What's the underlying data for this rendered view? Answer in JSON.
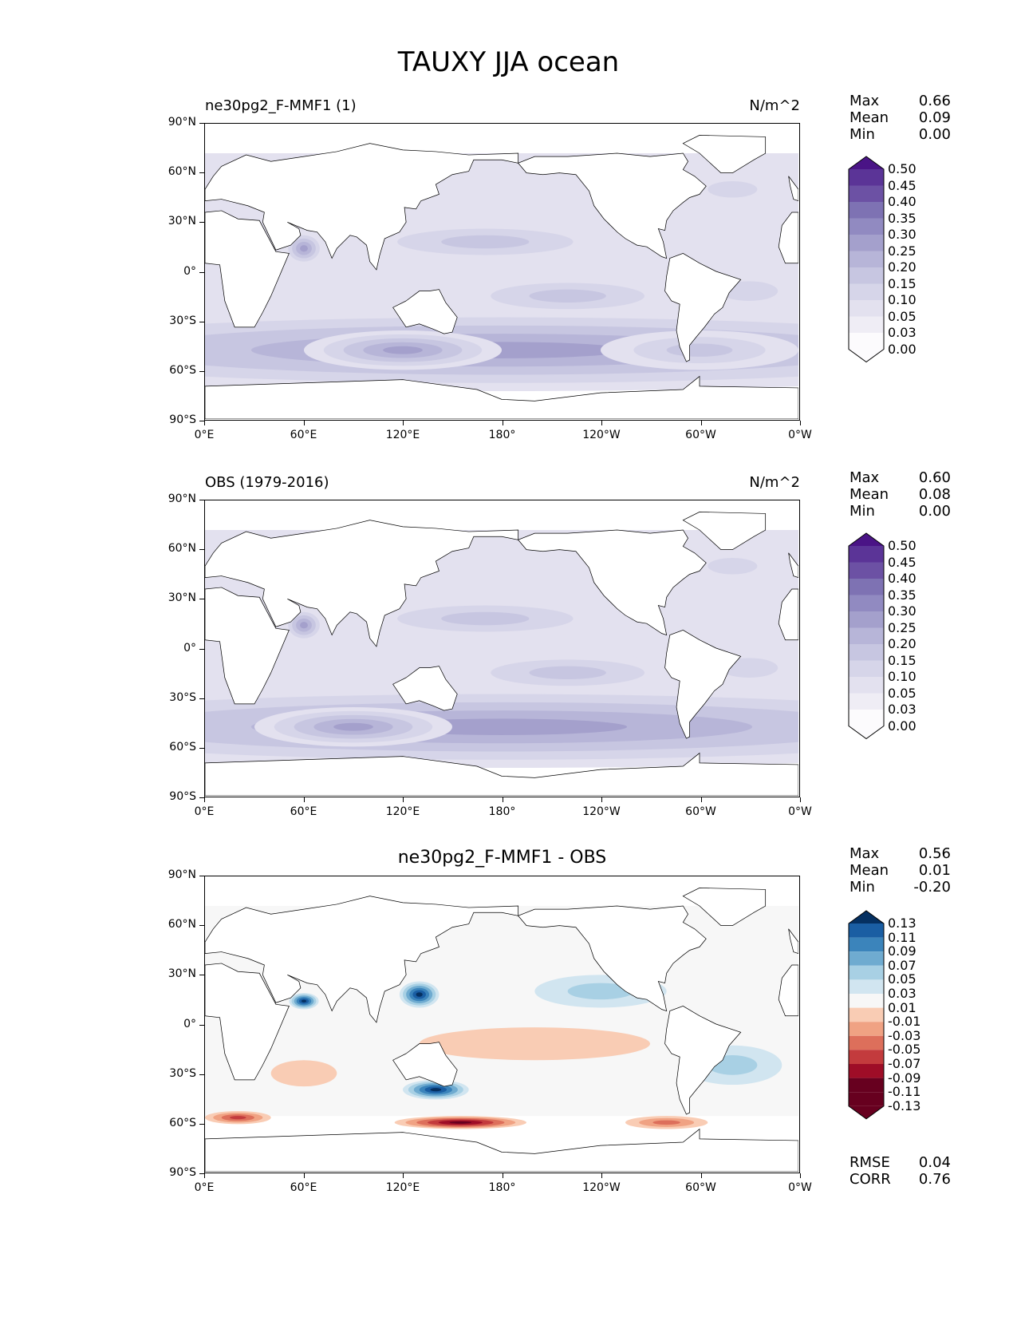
{
  "figure_title": "TAUXY JJA ocean",
  "lat_ticks": [
    "90°N",
    "60°N",
    "30°N",
    "0°",
    "30°S",
    "60°S",
    "90°S"
  ],
  "lon_ticks": [
    "0°E",
    "60°E",
    "120°E",
    "180°",
    "120°W",
    "60°W",
    "0°W"
  ],
  "colors": {
    "purples": [
      "#fcfbfd",
      "#efedf5",
      "#e3e1ef",
      "#d6d5e9",
      "#c7c6e1",
      "#b7b5d8",
      "#a4a0cc",
      "#918ac1",
      "#7e72b3",
      "#6c51a4",
      "#5b3497",
      "#4a1486"
    ],
    "rdbu": [
      "#67001f",
      "#9e0d27",
      "#c33b3d",
      "#dd6f5b",
      "#f0a283",
      "#f9ccb4",
      "#f7f7f7",
      "#d1e5f0",
      "#a8d0e4",
      "#6fabd0",
      "#3b84bb",
      "#1a5ea3",
      "#053061"
    ]
  },
  "chart_data": [
    {
      "type": "heatmap",
      "panel": "model",
      "left_title": "ne30pg2_F-MMF1 (1)",
      "units": "N/m^2",
      "stats": [
        {
          "label": "Max",
          "value": "0.66"
        },
        {
          "label": "Mean",
          "value": "0.09"
        },
        {
          "label": "Min",
          "value": "0.00"
        }
      ],
      "colorbar_levels": [
        "0.50",
        "0.45",
        "0.40",
        "0.35",
        "0.30",
        "0.25",
        "0.20",
        "0.15",
        "0.10",
        "0.05",
        "0.03",
        "0.00"
      ],
      "xlim": [
        0,
        360
      ],
      "ylim": [
        -90,
        90
      ]
    },
    {
      "type": "heatmap",
      "panel": "obs",
      "left_title": "OBS (1979-2016)",
      "units": "N/m^2",
      "stats": [
        {
          "label": "Max",
          "value": "0.60"
        },
        {
          "label": "Mean",
          "value": "0.08"
        },
        {
          "label": "Min",
          "value": "0.00"
        }
      ],
      "colorbar_levels": [
        "0.50",
        "0.45",
        "0.40",
        "0.35",
        "0.30",
        "0.25",
        "0.20",
        "0.15",
        "0.10",
        "0.05",
        "0.03",
        "0.00"
      ],
      "xlim": [
        0,
        360
      ],
      "ylim": [
        -90,
        90
      ]
    },
    {
      "type": "heatmap",
      "panel": "diff",
      "center_title": "ne30pg2_F-MMF1 - OBS",
      "stats": [
        {
          "label": "Max",
          "value": "0.56"
        },
        {
          "label": "Mean",
          "value": "0.01"
        },
        {
          "label": "Min",
          "value": "-0.20"
        }
      ],
      "colorbar_levels": [
        "0.13",
        "0.11",
        "0.09",
        "0.07",
        "0.05",
        "0.03",
        "0.01",
        "-0.01",
        "-0.03",
        "-0.05",
        "-0.07",
        "-0.09",
        "-0.11",
        "-0.13"
      ],
      "metrics": [
        {
          "label": "RMSE",
          "value": "0.04"
        },
        {
          "label": "CORR",
          "value": "0.76"
        }
      ],
      "xlim": [
        0,
        360
      ],
      "ylim": [
        -90,
        90
      ]
    }
  ]
}
